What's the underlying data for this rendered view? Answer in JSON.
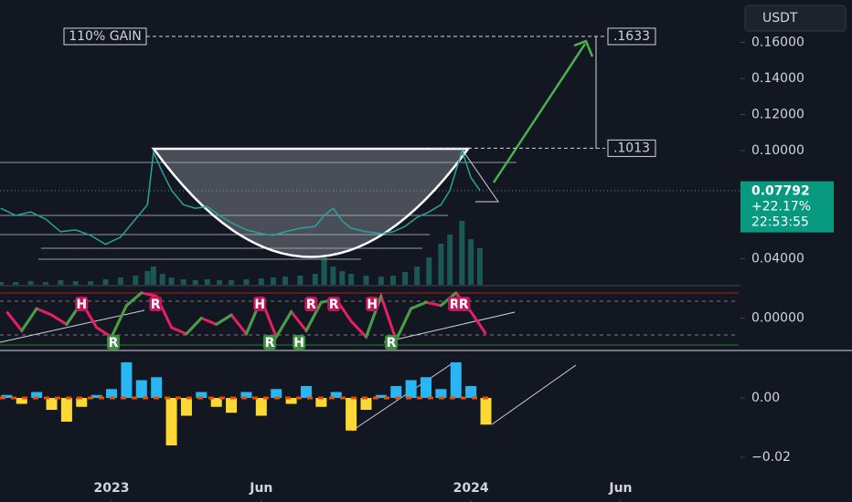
{
  "header": {
    "currency": "USDT"
  },
  "chart_data": [
    {
      "type": "line",
      "x": [
        -3.7,
        -3.2,
        -2.7,
        -2.2,
        -1.7,
        -1.2,
        -0.7,
        -0.2,
        0.3,
        0.8,
        1.2,
        1.4,
        1.7,
        2.0,
        2.4,
        2.8,
        3.2,
        3.6,
        4.0,
        4.5,
        5.0,
        5.4,
        5.8,
        6.3,
        6.8,
        7.1,
        7.4,
        7.7,
        8.0,
        8.5,
        9.0,
        9.4,
        9.8,
        10.2,
        10.6,
        11.0,
        11.3,
        11.7,
        12.0,
        12.3
      ],
      "values": [
        0.068,
        0.064,
        0.066,
        0.062,
        0.055,
        0.056,
        0.053,
        0.048,
        0.052,
        0.062,
        0.07,
        0.099,
        0.088,
        0.078,
        0.07,
        0.068,
        0.069,
        0.064,
        0.06,
        0.056,
        0.054,
        0.053,
        0.055,
        0.057,
        0.058,
        0.064,
        0.068,
        0.061,
        0.057,
        0.055,
        0.054,
        0.055,
        0.058,
        0.063,
        0.066,
        0.07,
        0.078,
        0.1,
        0.085,
        0.07792
      ],
      "volume": [
        3,
        3,
        4,
        3,
        5,
        4,
        4,
        6,
        8,
        10,
        15,
        20,
        12,
        8,
        6,
        5,
        6,
        5,
        5,
        6,
        7,
        8,
        9,
        10,
        12,
        30,
        20,
        15,
        12,
        10,
        9,
        10,
        14,
        20,
        30,
        45,
        55,
        70,
        50,
        40
      ],
      "color": "#26a69a",
      "volume_color": "#26a69a",
      "xlim": [
        -3.725,
        21.0
      ],
      "xticks": [
        {
          "value": 0,
          "label": "2023"
        },
        {
          "value": 5,
          "label": "Jun"
        },
        {
          "value": 12,
          "label": "2024"
        },
        {
          "value": 17,
          "label": "Jun"
        }
      ],
      "ylim": [
        0.0256,
        0.1835
      ],
      "volume_lim": [
        0,
        100
      ],
      "yticks": [
        {
          "value": 0.16,
          "label": "0.16000"
        },
        {
          "value": 0.14,
          "label": "0.14000"
        },
        {
          "value": 0.12,
          "label": "0.12000"
        },
        {
          "value": 0.1,
          "label": "0.10000"
        },
        {
          "value": 0.04,
          "label": "0.04000"
        }
      ],
      "levels": [
        {
          "value": 0.1633,
          "label": ".1633"
        },
        {
          "value": 0.1013,
          "label": ".1013"
        }
      ],
      "annotation": "110% GAIN",
      "last": {
        "value": 0.07792,
        "change": {
          "value": 22.17,
          "label": "+22.17%"
        },
        "countdown": "22:53:55",
        "color": "#089981"
      }
    },
    {
      "type": "oscillator",
      "x": [
        -3.5,
        -3,
        -2.5,
        -2,
        -1.5,
        -1,
        -0.5,
        0,
        0.5,
        1,
        1.5,
        2,
        2.5,
        3,
        3.5,
        4,
        4.5,
        5,
        5.5,
        6,
        6.5,
        7,
        7.5,
        8,
        8.5,
        9,
        9.5,
        10,
        10.5,
        11,
        11.5,
        12,
        12.5
      ],
      "values": [
        0.2,
        -0.4,
        0.3,
        0.1,
        -0.2,
        0.5,
        -0.3,
        -0.6,
        0.4,
        0.8,
        0.7,
        -0.3,
        -0.5,
        0.0,
        -0.2,
        0.1,
        -0.5,
        0.6,
        -0.6,
        0.2,
        -0.4,
        0.5,
        0.6,
        -0.1,
        -0.6,
        0.7,
        -0.7,
        0.3,
        0.5,
        0.4,
        0.8,
        0.2,
        -0.5
      ],
      "ylim": [
        -1,
        1
      ],
      "yticks": [
        {
          "value": 0,
          "label": "0.00000"
        }
      ],
      "up_color": "#43a047",
      "down_color": "#e91e63",
      "markers": [
        {
          "x": -1.0,
          "label": "H",
          "position": "top",
          "color": "#c2185b"
        },
        {
          "x": 0.06,
          "label": "R",
          "position": "bottom",
          "color": "#388e3c"
        },
        {
          "x": 1.47,
          "label": "R",
          "position": "top",
          "color": "#c2185b"
        },
        {
          "x": 4.95,
          "label": "H",
          "position": "top",
          "color": "#c2185b"
        },
        {
          "x": 5.28,
          "label": "R",
          "position": "bottom",
          "color": "#388e3c"
        },
        {
          "x": 6.26,
          "label": "H",
          "position": "bottom",
          "color": "#388e3c"
        },
        {
          "x": 6.66,
          "label": "R",
          "position": "top",
          "color": "#c2185b"
        },
        {
          "x": 7.42,
          "label": "R",
          "position": "top",
          "color": "#c2185b"
        },
        {
          "x": 8.7,
          "label": "H",
          "position": "top",
          "color": "#c2185b"
        },
        {
          "x": 9.34,
          "label": "R",
          "position": "bottom",
          "color": "#388e3c"
        },
        {
          "x": 11.45,
          "label": "R",
          "position": "top",
          "color": "#c2185b"
        },
        {
          "x": 11.76,
          "label": "R",
          "position": "top",
          "color": "#c2185b"
        }
      ]
    },
    {
      "type": "bar",
      "x": [
        -3.5,
        -3,
        -2.5,
        -2,
        -1.5,
        -1,
        -0.5,
        0,
        0.5,
        1,
        1.5,
        2,
        2.5,
        3,
        3.5,
        4,
        4.5,
        5,
        5.5,
        6,
        6.5,
        7,
        7.5,
        8,
        8.5,
        9,
        9.5,
        10,
        10.5,
        11,
        11.5,
        12,
        12.5
      ],
      "values": [
        0.001,
        -0.002,
        0.002,
        -0.004,
        -0.008,
        -0.003,
        0.001,
        0.003,
        0.012,
        0.006,
        0.007,
        -0.016,
        -0.006,
        0.002,
        -0.003,
        -0.005,
        0.002,
        -0.006,
        0.003,
        -0.002,
        0.004,
        -0.003,
        0.002,
        -0.011,
        -0.004,
        0.001,
        0.004,
        0.006,
        0.007,
        0.003,
        0.012,
        0.004,
        -0.009
      ],
      "ylim": [
        -0.0351,
        0.0157
      ],
      "yticks": [
        {
          "value": 0,
          "label": "0.00"
        },
        {
          "value": -0.02,
          "label": "−0.02"
        }
      ],
      "positive_color": "#29b6f6",
      "negative_color": "#fdd835"
    }
  ]
}
